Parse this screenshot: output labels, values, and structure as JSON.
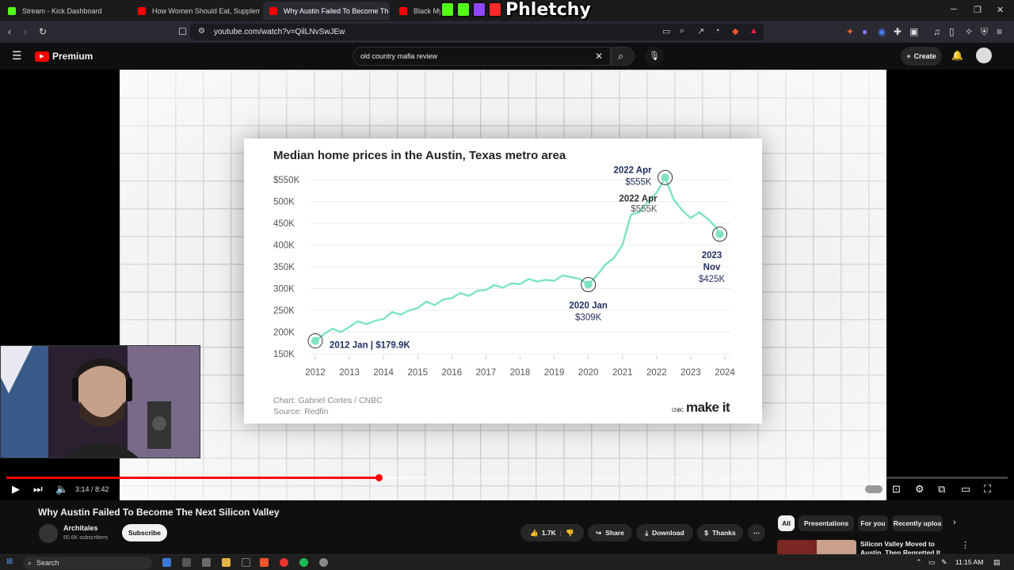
{
  "browser": {
    "tabs": [
      {
        "label": "Stream - Kick Dashboard",
        "favicon_color": "#53fc18"
      },
      {
        "label": "How Women Should Eat, Supplement",
        "favicon_color": "#ff0000"
      },
      {
        "label": "Why Austin Failed To Become Th",
        "favicon_color": "#ff0000",
        "active": true
      },
      {
        "label": "Black Myth",
        "favicon_color": "#ff0000"
      }
    ],
    "url": "youtube.com/watch?v=QilLNvSwJEw"
  },
  "overlay": {
    "brand": "Phletchy"
  },
  "youtube": {
    "logo_label": "Premium",
    "search_query": "old country mafia review",
    "create_label": "Create"
  },
  "video": {
    "current_time": "3:14",
    "duration": "8:42",
    "time_display": "3:14 / 8:42",
    "progress_fraction": 0.372,
    "loaded_fraction": 0.42,
    "title": "Why Austin Failed To Become The Next Silicon Valley"
  },
  "channel": {
    "name": "Architales",
    "subscribers": "60.6K subscribers",
    "subscribe_label": "Subscribe"
  },
  "actions": {
    "likes": "1.7K",
    "share": "Share",
    "download": "Download",
    "thanks": "Thanks"
  },
  "chips": [
    "All",
    "Presentations",
    "For you",
    "Recently uploa"
  ],
  "recommendation": {
    "title": "Silicon Valley Moved to Austin. Then Regretted It"
  },
  "taskbar": {
    "search": "Search",
    "clock": "11:15 AM"
  },
  "chart_data": {
    "type": "line",
    "title": "Median home prices in the Austin, Texas metro area",
    "credit": "Chart: Gabriel Cortes / CNBC",
    "source": "Source: Redfin",
    "brand": "make it",
    "brand_prefix": "CNBC",
    "line_color": "#7de3c3",
    "xlim": [
      2012,
      2024
    ],
    "ylim": [
      150,
      550
    ],
    "x_ticks": [
      "2012",
      "2013",
      "2014",
      "2015",
      "2016",
      "2017",
      "2018",
      "2019",
      "2020",
      "2021",
      "2022",
      "2023",
      "2024"
    ],
    "y_ticks": [
      {
        "value": 550,
        "label": "$550K"
      },
      {
        "value": 500,
        "label": "500K"
      },
      {
        "value": 450,
        "label": "450K"
      },
      {
        "value": 400,
        "label": "400K"
      },
      {
        "value": 350,
        "label": "350K"
      },
      {
        "value": 300,
        "label": "300K"
      },
      {
        "value": 250,
        "label": "250K"
      },
      {
        "value": 200,
        "label": "200K"
      },
      {
        "value": 150,
        "label": "150K"
      }
    ],
    "series": [
      {
        "x": [
          2012.0,
          2012.25,
          2012.5,
          2012.75,
          2013.0,
          2013.25,
          2013.5,
          2013.75,
          2014.0,
          2014.25,
          2014.5,
          2014.75,
          2015.0,
          2015.25,
          2015.5,
          2015.75,
          2016.0,
          2016.25,
          2016.5,
          2016.75,
          2017.0,
          2017.25,
          2017.5,
          2017.75,
          2018.0,
          2018.25,
          2018.5,
          2018.75,
          2019.0,
          2019.25,
          2019.5,
          2019.75,
          2020.0,
          2020.25,
          2020.5,
          2020.75,
          2021.0,
          2021.25,
          2021.5,
          2021.75,
          2022.0,
          2022.25,
          2022.5,
          2022.75,
          2023.0,
          2023.25,
          2023.5,
          2023.75,
          2023.85
        ],
        "y": [
          179.9,
          195,
          208,
          200,
          212,
          225,
          218,
          226,
          230,
          246,
          240,
          250,
          255,
          270,
          262,
          275,
          278,
          290,
          283,
          295,
          297,
          308,
          302,
          312,
          310,
          322,
          316,
          320,
          318,
          330,
          326,
          322,
          309,
          330,
          355,
          370,
          400,
          470,
          475,
          500,
          520,
          555,
          505,
          480,
          462,
          475,
          460,
          440,
          425
        ]
      }
    ],
    "annotations": [
      {
        "x": 2012.0,
        "y": 179.9,
        "text": "2012 Jan | $179.9K",
        "circle": true
      },
      {
        "x": 2020.0,
        "y": 309,
        "line1": "2020 Jan",
        "line2": "$309K",
        "circle": true
      },
      {
        "x": 2022.25,
        "y": 555,
        "line1": "2022 Apr",
        "line2": "$555K",
        "circle": true
      },
      {
        "x": 2022.25,
        "y": 555,
        "line1": "2022 Apr",
        "line2": "$555K",
        "ghost": true
      },
      {
        "x": 2023.85,
        "y": 425,
        "line1": "2023",
        "line2": "Nov",
        "line3": "$425K",
        "circle": true
      }
    ]
  }
}
